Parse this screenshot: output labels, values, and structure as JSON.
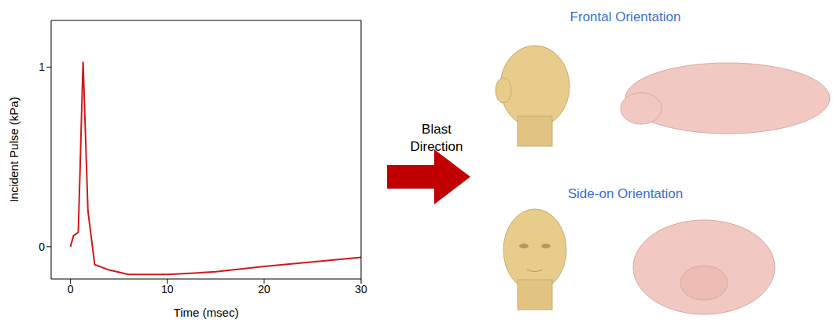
{
  "chart_data": {
    "type": "line",
    "x_label": "Time (msec)",
    "y_label": "Incident Pulse (kPa)",
    "color": "#d01818",
    "x": [
      0,
      0.3,
      0.8,
      1.0,
      1.2,
      1.3,
      1.5,
      1.8,
      2.5,
      4,
      6,
      10,
      15,
      20,
      25,
      30
    ],
    "values": [
      0,
      0.06,
      0.08,
      0.45,
      0.85,
      1.03,
      0.7,
      0.2,
      -0.1,
      -0.13,
      -0.155,
      -0.155,
      -0.14,
      -0.11,
      -0.085,
      -0.06
    ],
    "xlim": [
      -2,
      30
    ],
    "xticks": [
      0,
      10,
      20,
      30
    ],
    "ylim": [
      -0.18,
      1.26
    ],
    "yticks": [
      0,
      1
    ],
    "grid": false
  },
  "figure": {
    "arrow_label": "Blast Direction",
    "panels": [
      "Frontal Orientation",
      "Side-on Orientation"
    ]
  }
}
